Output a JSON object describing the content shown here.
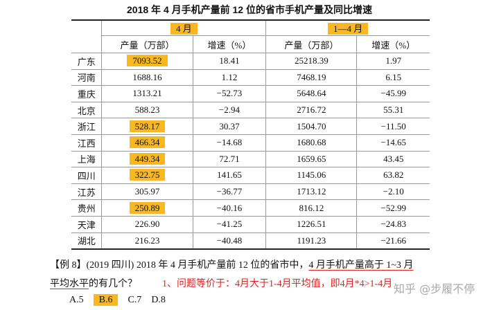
{
  "title": "2018 年 4 月手机产量前 12 位的省市手机产量及同比增速",
  "table": {
    "groups": [
      "4 月",
      "1—4 月"
    ],
    "columns": [
      "产量（万部）",
      "增速（%）",
      "产量（万部）",
      "增速（%）"
    ],
    "rows": [
      [
        "广东",
        "7093.52",
        "18.41",
        "25218.39",
        "1.97"
      ],
      [
        "河南",
        "1688.16",
        "1.12",
        "7468.19",
        "6.15"
      ],
      [
        "重庆",
        "1313.21",
        "−52.73",
        "5648.64",
        "−45.99"
      ],
      [
        "北京",
        "588.23",
        "−2.94",
        "2716.72",
        "55.31"
      ],
      [
        "浙江",
        "528.17",
        "30.37",
        "1504.70",
        "−11.50"
      ],
      [
        "江西",
        "466.34",
        "−14.68",
        "1680.68",
        "−14.65"
      ],
      [
        "上海",
        "449.34",
        "72.71",
        "1659.65",
        "43.45"
      ],
      [
        "四川",
        "322.75",
        "141.65",
        "1145.06",
        "63.82"
      ],
      [
        "江苏",
        "305.97",
        "−36.77",
        "1713.12",
        "−2.10"
      ],
      [
        "贵州",
        "250.89",
        "−40.16",
        "816.12",
        "−52.99"
      ],
      [
        "天津",
        "226.90",
        "−41.25",
        "1226.51",
        "−24.83"
      ],
      [
        "湖北",
        "216.23",
        "−40.48",
        "1191.23",
        "−21.66"
      ]
    ]
  },
  "question": {
    "line1": [
      "【例 8】(2019 四川) 2018 年 4 月手机产量前 12 位的省市中，",
      "4 月手机产量高于 1~3 月"
    ],
    "line2": [
      "平均水平",
      "的有几个？"
    ],
    "note": "1、问题等价于：4月大于1-4月平均值，即4月*4>1-4月",
    "options": [
      "A.5",
      "B.6",
      "C.7",
      "D.8"
    ]
  },
  "watermark": "知乎 @步履不停"
}
